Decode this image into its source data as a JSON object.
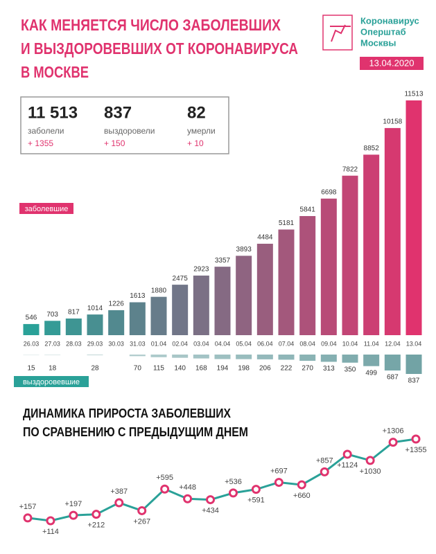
{
  "header": {
    "title": [
      "КАК МЕНЯЕТСЯ ЧИСЛО ЗАБОЛЕВШИХ",
      "И ВЫЗДОРОВЕВШИХ ОТ КОРОНАВИРУСА",
      "В МОСКВЕ"
    ],
    "logo": [
      "Коронавирус",
      "Оперштаб",
      "Москвы"
    ],
    "date": "13.04.2020"
  },
  "stats": [
    {
      "value": "11 513",
      "label": "заболели",
      "delta": "+ 1355"
    },
    {
      "value": "837",
      "label": "выздоровели",
      "delta": "+ 150"
    },
    {
      "value": "82",
      "label": "умерли",
      "delta": "+ 10"
    }
  ],
  "chart_data": [
    {
      "type": "bar",
      "categories": [
        "26.03",
        "27.03",
        "28.03",
        "29.03",
        "30.03",
        "31.03",
        "01.04",
        "02.04",
        "03.04",
        "04.04",
        "05.04",
        "06.04",
        "07.04",
        "08.04",
        "09.04",
        "10.04",
        "11.04",
        "12.04",
        "13.04"
      ],
      "series": [
        {
          "name": "заболевшие",
          "colors": [
            "#2aa198",
            "#e0336e"
          ],
          "values": [
            546,
            703,
            817,
            1014,
            1226,
            1613,
            1880,
            2475,
            2923,
            3357,
            3893,
            4484,
            5181,
            5841,
            6698,
            7822,
            8852,
            10158,
            11513
          ]
        },
        {
          "name": "выздоровевшие",
          "color": "#6a9ea0",
          "values": [
            15,
            18,
            null,
            28,
            null,
            70,
            115,
            140,
            168,
            194,
            198,
            206,
            222,
            270,
            313,
            350,
            499,
            687,
            837
          ]
        }
      ]
    },
    {
      "type": "line",
      "title": [
        "ДИНАМИКА ПРИРОСТА ЗАБОЛЕВШИХ",
        "ПО СРАВНЕНИЮ С ПРЕДЫДУЩИМ ДНЕМ"
      ],
      "color": "#2aa198",
      "marker_color": "#e0336e",
      "values": [
        157,
        114,
        197,
        212,
        387,
        267,
        595,
        448,
        434,
        536,
        591,
        697,
        660,
        857,
        1124,
        1030,
        1306,
        1355
      ],
      "value_labels": [
        "+157",
        "+114",
        "+197",
        "+212",
        "+387",
        "+267",
        "+595",
        "+448",
        "+434",
        "+536",
        "+591",
        "+697",
        "+660",
        "+857",
        "+1124",
        "+1030",
        "+1306",
        "+1355"
      ]
    }
  ]
}
